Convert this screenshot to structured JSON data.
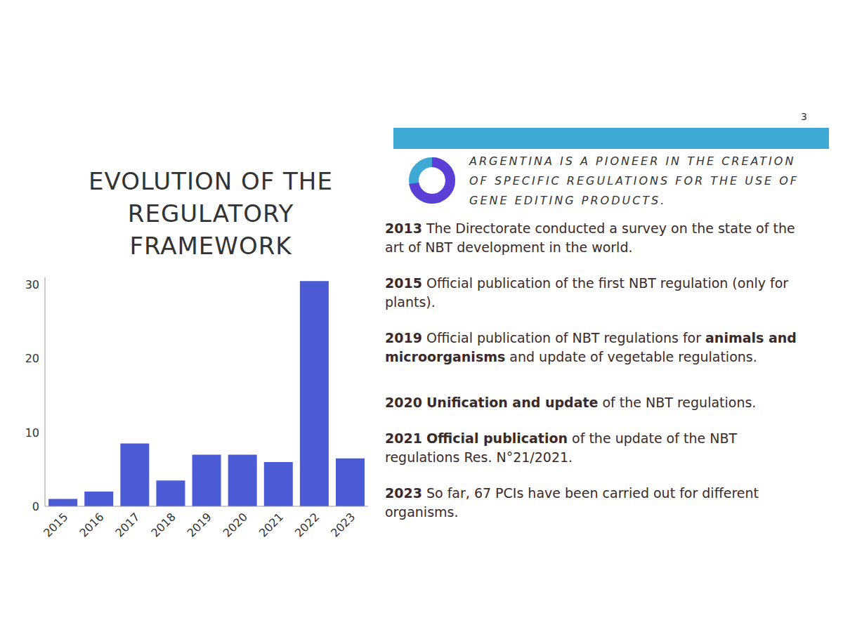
{
  "chart_data": {
    "type": "bar",
    "title": "EVOLUTION OF THE REGULATORY FRAMEWORK",
    "categories": [
      "2015",
      "2016",
      "2017",
      "2018",
      "2019",
      "2020",
      "2021",
      "2022",
      "2023"
    ],
    "values": [
      1,
      2,
      8.5,
      3.5,
      7,
      7,
      6,
      30.5,
      6.5
    ],
    "color": "#4b5bd6",
    "ylim": [
      0,
      31
    ],
    "yticks": [
      0,
      10,
      20,
      30
    ],
    "grid": false
  },
  "slide": {
    "page_number": "3",
    "headline": "ARGENTINA IS A PIONEER IN THE CREATION OF SPECIFIC REGULATIONS FOR THE USE OF GENE EDITING PRODUCTS.",
    "timeline": [
      {
        "year": "2013",
        "parts": [
          {
            "text": "The Directorate conducted a survey on the state of the art of NBT development in the world.",
            "bold": false
          }
        ]
      },
      {
        "year": "2015",
        "parts": [
          {
            "text": "Official publication of the first NBT regulation (only for plants).",
            "bold": false
          }
        ]
      },
      {
        "year": "2019",
        "parts": [
          {
            "text": "Official publication of NBT regulations for ",
            "bold": false
          },
          {
            "text": "animals and microorganisms",
            "bold": true
          },
          {
            "text": " and update of vegetable regulations.",
            "bold": false
          }
        ]
      },
      {
        "year": "2020",
        "parts": [
          {
            "text": "Unification and update",
            "bold": true
          },
          {
            "text": " of the NBT regulations.",
            "bold": false
          }
        ]
      },
      {
        "year": "2021",
        "parts": [
          {
            "text": "Official publication",
            "bold": true
          },
          {
            "text": " of the update of the NBT regulations Res. N°21/2021.",
            "bold": false
          }
        ]
      },
      {
        "year": "2023",
        "parts": [
          {
            "text": "So far, 67 PCIs have been carried out for different organisms.",
            "bold": false
          }
        ]
      }
    ]
  }
}
